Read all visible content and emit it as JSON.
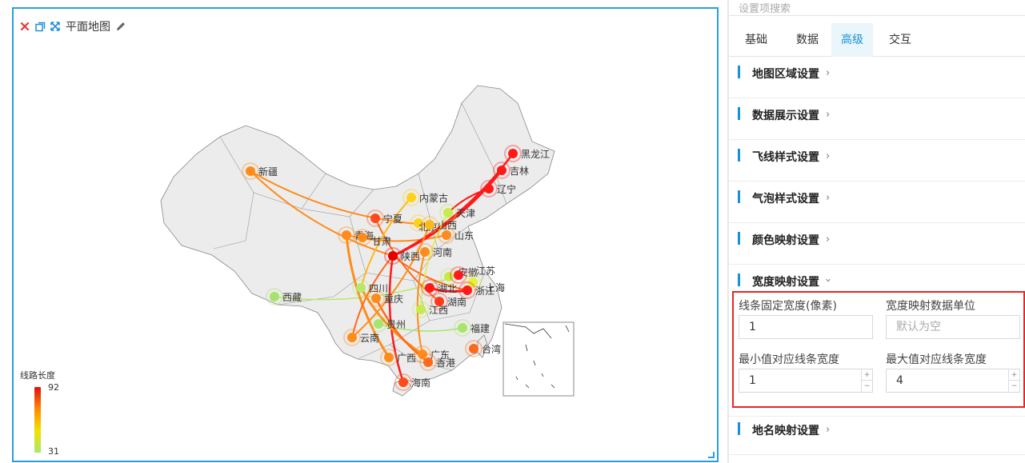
{
  "toolbar": {
    "title": "平面地图"
  },
  "map": {
    "provinces": [
      {
        "name": "新疆"
      },
      {
        "name": "西藏"
      },
      {
        "name": "青海"
      },
      {
        "name": "甘肃"
      },
      {
        "name": "宁夏"
      },
      {
        "name": "内蒙古"
      },
      {
        "name": "黑龙江"
      },
      {
        "name": "吉林"
      },
      {
        "name": "辽宁"
      },
      {
        "name": "北京"
      },
      {
        "name": "天津"
      },
      {
        "name": "山西"
      },
      {
        "name": "山东"
      },
      {
        "name": "陕西"
      },
      {
        "name": "河南"
      },
      {
        "name": "四川"
      },
      {
        "name": "重庆"
      },
      {
        "name": "湖北"
      },
      {
        "name": "安徽"
      },
      {
        "name": "江苏"
      },
      {
        "name": "上海"
      },
      {
        "name": "浙江"
      },
      {
        "name": "湖南"
      },
      {
        "name": "江西"
      },
      {
        "name": "贵州"
      },
      {
        "name": "福建"
      },
      {
        "name": "云南"
      },
      {
        "name": "广西"
      },
      {
        "name": "广东"
      },
      {
        "name": "香港"
      },
      {
        "name": "台湾"
      },
      {
        "name": "海南"
      }
    ]
  },
  "legend": {
    "title": "线路长度",
    "max": "92",
    "min": "31",
    "colors": [
      "#e01010",
      "#ff8a00",
      "#f2e200",
      "#a8e870"
    ]
  },
  "sidebar": {
    "search_placeholder": "设置项搜索",
    "tabs": [
      {
        "label": "基础"
      },
      {
        "label": "数据"
      },
      {
        "label": "高级",
        "active": true
      },
      {
        "label": "交互"
      }
    ],
    "sections": [
      {
        "label": "地图区域设置"
      },
      {
        "label": "数据展示设置"
      },
      {
        "label": "飞线样式设置"
      },
      {
        "label": "气泡样式设置"
      },
      {
        "label": "颜色映射设置"
      },
      {
        "label": "宽度映射设置",
        "expanded": true
      },
      {
        "label": "地名映射设置"
      }
    ],
    "width_settings": {
      "fixed_width_label": "线条固定宽度(像素)",
      "fixed_width_value": "1",
      "unit_label": "宽度映射数据单位",
      "unit_placeholder": "默认为空",
      "min_label": "最小值对应线条宽度",
      "min_value": "1",
      "max_label": "最大值对应线条宽度",
      "max_value": "4"
    }
  },
  "colors": {
    "accent": "#2a9fe0",
    "highlight_border": "#e52727"
  }
}
